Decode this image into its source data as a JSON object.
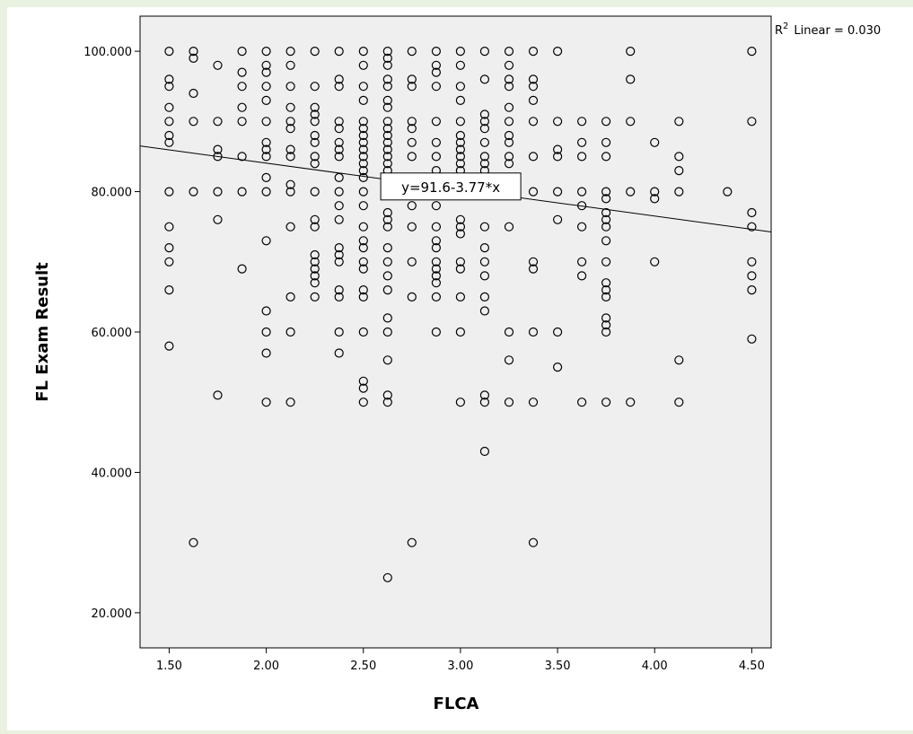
{
  "chart_data": {
    "type": "scatter",
    "title": "",
    "xlabel": "FLCA",
    "ylabel": "FL Exam Result",
    "xlim": [
      1.35,
      4.6
    ],
    "ylim": [
      15,
      105
    ],
    "x_ticks": [
      "1.50",
      "2.00",
      "2.50",
      "3.00",
      "3.50",
      "4.00",
      "4.50"
    ],
    "y_ticks": [
      "20.000",
      "40.000",
      "60.000",
      "80.000",
      "100.000"
    ],
    "grid": false,
    "background": "#efefef",
    "marker": "open-circle",
    "fit_line": {
      "intercept": 91.6,
      "slope": -3.77,
      "label": "y=91.6-3.77*x",
      "label_at_x": 2.95
    },
    "r2_label": "Linear = 0.030",
    "r2_prefix": "R",
    "r2_sup": "2",
    "columns": [
      {
        "x": 1.5,
        "y": [
          100,
          96,
          95,
          92,
          90,
          88,
          87,
          80,
          75,
          72,
          70,
          66,
          58
        ]
      },
      {
        "x": 1.625,
        "y": [
          100,
          99,
          94,
          90,
          80,
          30
        ]
      },
      {
        "x": 1.75,
        "y": [
          98,
          90,
          86,
          85,
          80,
          76,
          51
        ]
      },
      {
        "x": 1.875,
        "y": [
          100,
          97,
          95,
          92,
          90,
          85,
          80,
          69
        ]
      },
      {
        "x": 2.0,
        "y": [
          100,
          98,
          97,
          95,
          93,
          90,
          87,
          86,
          85,
          82,
          80,
          73,
          63,
          60,
          57,
          50
        ]
      },
      {
        "x": 2.125,
        "y": [
          100,
          98,
          95,
          92,
          90,
          89,
          86,
          85,
          81,
          80,
          75,
          65,
          60,
          50
        ]
      },
      {
        "x": 2.25,
        "y": [
          100,
          95,
          92,
          91,
          90,
          88,
          87,
          85,
          84,
          80,
          76,
          75,
          71,
          70,
          69,
          68,
          67,
          65
        ]
      },
      {
        "x": 2.375,
        "y": [
          100,
          96,
          95,
          90,
          89,
          87,
          86,
          85,
          82,
          80,
          78,
          76,
          72,
          71,
          70,
          66,
          65,
          60,
          57
        ]
      },
      {
        "x": 2.5,
        "y": [
          100,
          98,
          95,
          93,
          90,
          89,
          88,
          87,
          86,
          85,
          84,
          83,
          82,
          80,
          78,
          75,
          73,
          72,
          70,
          69,
          66,
          65,
          60,
          53,
          52,
          50
        ]
      },
      {
        "x": 2.625,
        "y": [
          100,
          99,
          98,
          96,
          95,
          93,
          92,
          90,
          89,
          88,
          87,
          86,
          85,
          84,
          83,
          82,
          80,
          77,
          76,
          75,
          72,
          70,
          68,
          66,
          62,
          60,
          56,
          51,
          50,
          25
        ]
      },
      {
        "x": 2.75,
        "y": [
          100,
          96,
          95,
          90,
          89,
          87,
          85,
          82,
          80,
          78,
          75,
          70,
          65,
          30
        ]
      },
      {
        "x": 2.875,
        "y": [
          100,
          98,
          97,
          95,
          90,
          87,
          85,
          83,
          80,
          78,
          75,
          73,
          72,
          70,
          69,
          68,
          67,
          65,
          60
        ]
      },
      {
        "x": 3.0,
        "y": [
          100,
          98,
          95,
          93,
          90,
          88,
          87,
          86,
          85,
          84,
          83,
          82,
          80,
          76,
          75,
          74,
          70,
          69,
          65,
          60,
          50
        ]
      },
      {
        "x": 3.125,
        "y": [
          100,
          96,
          91,
          90,
          89,
          87,
          85,
          84,
          83,
          80,
          75,
          72,
          70,
          68,
          65,
          63,
          51,
          50,
          43
        ]
      },
      {
        "x": 3.25,
        "y": [
          100,
          98,
          96,
          95,
          92,
          90,
          88,
          87,
          85,
          84,
          82,
          80,
          75,
          60,
          56,
          50
        ]
      },
      {
        "x": 3.375,
        "y": [
          100,
          96,
          95,
          93,
          90,
          85,
          80,
          70,
          69,
          60,
          50,
          30
        ]
      },
      {
        "x": 3.5,
        "y": [
          100,
          90,
          86,
          85,
          80,
          76,
          60,
          55
        ]
      },
      {
        "x": 3.625,
        "y": [
          90,
          87,
          85,
          80,
          78,
          75,
          70,
          68,
          50
        ]
      },
      {
        "x": 3.75,
        "y": [
          90,
          87,
          85,
          80,
          79,
          77,
          76,
          75,
          73,
          70,
          67,
          66,
          65,
          62,
          61,
          60,
          50
        ]
      },
      {
        "x": 3.875,
        "y": [
          100,
          96,
          90,
          80,
          50
        ]
      },
      {
        "x": 4.0,
        "y": [
          87,
          80,
          79,
          70
        ]
      },
      {
        "x": 4.125,
        "y": [
          90,
          85,
          83,
          80,
          56,
          50
        ]
      },
      {
        "x": 4.375,
        "y": [
          80
        ]
      },
      {
        "x": 4.5,
        "y": [
          100,
          90,
          77,
          75,
          70,
          68,
          66,
          59
        ]
      }
    ]
  }
}
